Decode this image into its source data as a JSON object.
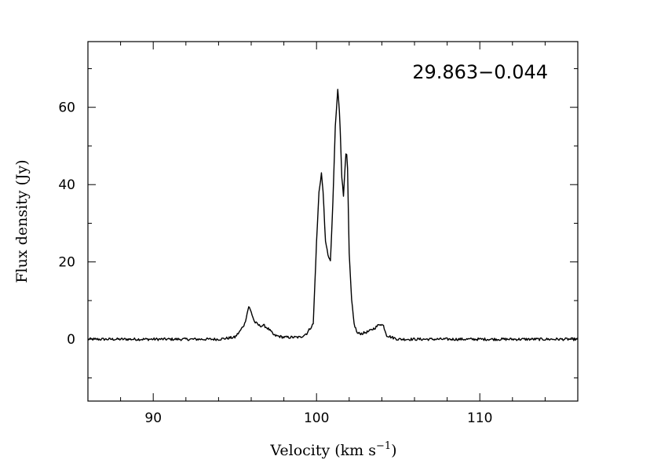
{
  "chart_data": {
    "type": "line",
    "title": "29.863−0.044",
    "xlabel": "Velocity (km s",
    "xlabel_sup": "−1",
    "xlabel_close": ")",
    "ylabel": "Flux density (Jy)",
    "xlim": [
      86,
      116
    ],
    "ylim": [
      -16,
      77
    ],
    "x_ticks": [
      {
        "value": 90,
        "label": "90"
      },
      {
        "value": 100,
        "label": "100"
      },
      {
        "value": 110,
        "label": "110"
      }
    ],
    "y_ticks": [
      {
        "value": 0,
        "label": "0"
      },
      {
        "value": 20,
        "label": "20"
      },
      {
        "value": 40,
        "label": "40"
      },
      {
        "value": 60,
        "label": "60"
      }
    ],
    "x_minor_step": 2,
    "y_minor_step": 10,
    "grid": false,
    "legend": "none",
    "line_color": "#000000",
    "series": [
      {
        "x": [
          86,
          90,
          94,
          95.0,
          95.3,
          95.6,
          95.85,
          96.0,
          96.2,
          96.5,
          96.8,
          97.1,
          97.4,
          98,
          99,
          99.4,
          99.8,
          100.0,
          100.15,
          100.3,
          100.42,
          100.55,
          100.7,
          100.85,
          101.0,
          101.15,
          101.3,
          101.42,
          101.55,
          101.65,
          101.75,
          101.82,
          101.9,
          102.0,
          102.15,
          102.3,
          102.5,
          102.8,
          103.2,
          103.6,
          103.9,
          104.1,
          104.3,
          104.6,
          105.0,
          106,
          110,
          116
        ],
        "y": [
          0,
          0,
          0,
          0.5,
          2,
          4,
          8.5,
          7,
          4.5,
          3.5,
          3.5,
          2.5,
          1,
          0.5,
          0.5,
          1.5,
          4,
          25,
          38,
          43,
          37,
          25,
          22,
          20,
          35,
          55,
          64.5,
          58,
          42,
          37,
          45,
          49.5,
          44,
          22,
          10,
          4,
          1.5,
          1.5,
          2,
          3,
          4,
          3.5,
          1,
          0.5,
          0,
          0,
          0,
          0
        ]
      }
    ]
  }
}
